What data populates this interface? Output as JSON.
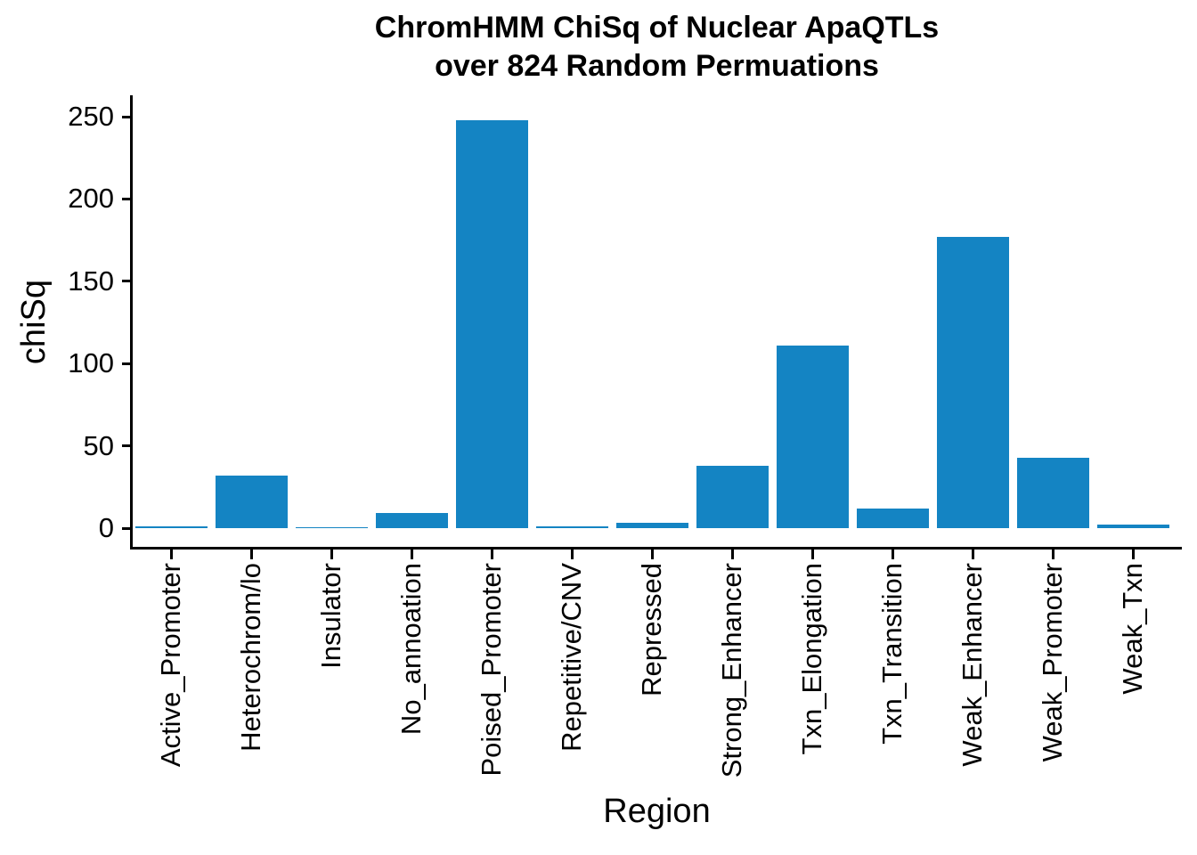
{
  "chart_data": {
    "type": "bar",
    "title_line1": "ChromHMM ChiSq of Nuclear ApaQTLs",
    "title_line2": "over 824 Random Permuations",
    "xlabel": "Region",
    "ylabel": "chiSq",
    "categories": [
      "Active_Promoter",
      "Heterochrom/lo",
      "Insulator",
      "No_annoation",
      "Poised_Promoter",
      "Repetitive/CNV",
      "Repressed",
      "Strong_Enhancer",
      "Txn_Elongation",
      "Txn_Transition",
      "Weak_Enhancer",
      "Weak_Promoter",
      "Weak_Txn"
    ],
    "values": [
      1,
      32,
      0.5,
      9,
      248,
      1,
      3,
      38,
      111,
      12,
      177,
      43,
      2
    ],
    "yticks": [
      0,
      50,
      100,
      150,
      200,
      250
    ],
    "ylim": [
      -13,
      263
    ],
    "grid": false,
    "legend": "none",
    "bar_color": "#1484c3",
    "axis_color": "#000000",
    "text_color": "#000000",
    "background_color": "#ffffff"
  }
}
